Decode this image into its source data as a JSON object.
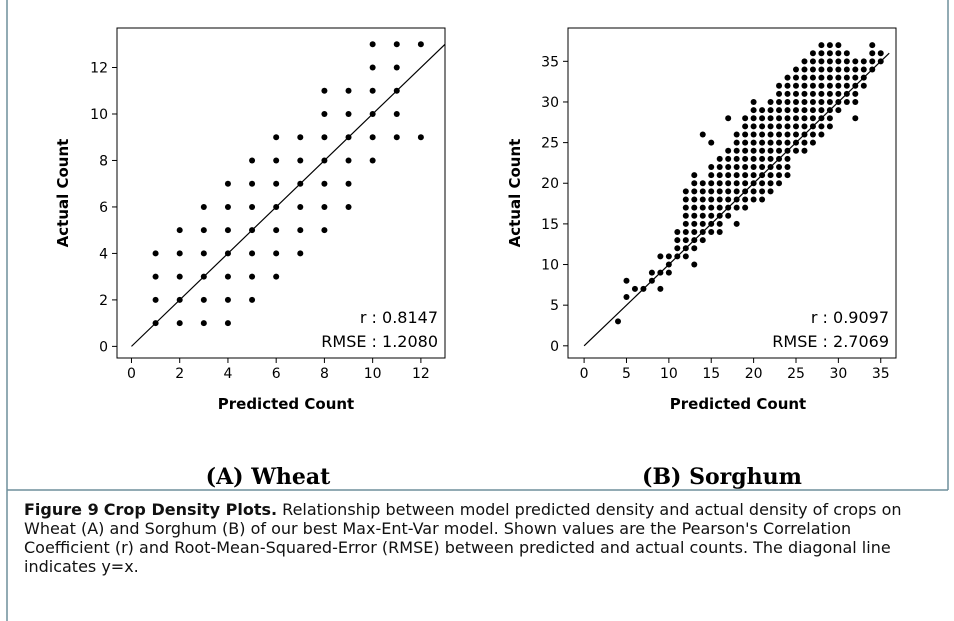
{
  "chart_data": [
    {
      "type": "scatter",
      "title": "(A) Wheat",
      "xlabel": "Predicted Count",
      "ylabel": "Actual Count",
      "annotations": [
        "r : 0.8147",
        "RMSE : 1.2080"
      ],
      "color": "#000000",
      "xlim": [
        -0.6,
        13
      ],
      "ylim": [
        -0.5,
        13.7
      ],
      "xticks": [
        0,
        2,
        4,
        6,
        8,
        10,
        12
      ],
      "yticks": [
        0,
        2,
        4,
        6,
        8,
        10,
        12
      ],
      "reference_line": {
        "x": [
          0,
          13
        ],
        "values": [
          0,
          13
        ]
      },
      "x": [
        1,
        1,
        1,
        1,
        2,
        2,
        2,
        2,
        2,
        3,
        3,
        3,
        3,
        3,
        3,
        4,
        4,
        4,
        4,
        4,
        4,
        4,
        5,
        5,
        5,
        5,
        5,
        5,
        5,
        6,
        6,
        6,
        6,
        6,
        6,
        6,
        7,
        7,
        7,
        7,
        7,
        7,
        8,
        8,
        8,
        8,
        8,
        8,
        8,
        9,
        9,
        9,
        9,
        9,
        9,
        10,
        10,
        10,
        10,
        10,
        10,
        11,
        11,
        11,
        11,
        11,
        12,
        12
      ],
      "values": [
        1,
        2,
        3,
        4,
        1,
        2,
        3,
        4,
        5,
        1,
        2,
        3,
        4,
        5,
        6,
        1,
        2,
        3,
        4,
        5,
        6,
        7,
        2,
        3,
        4,
        5,
        6,
        7,
        8,
        3,
        4,
        5,
        6,
        7,
        8,
        9,
        4,
        5,
        6,
        7,
        8,
        9,
        5,
        6,
        7,
        8,
        9,
        10,
        11,
        6,
        7,
        8,
        9,
        10,
        11,
        8,
        9,
        10,
        11,
        12,
        13,
        9,
        10,
        11,
        12,
        13,
        9,
        13
      ]
    },
    {
      "type": "scatter",
      "title": "(B) Sorghum",
      "xlabel": "Predicted Count",
      "ylabel": "Actual Count",
      "annotations": [
        "r : 0.9097",
        "RMSE : 2.7069"
      ],
      "color": "#000000",
      "xlim": [
        -1.9,
        36.8
      ],
      "ylim": [
        -1.5,
        39.1
      ],
      "xticks": [
        0,
        5,
        10,
        15,
        20,
        25,
        30,
        35
      ],
      "yticks": [
        0,
        5,
        10,
        15,
        20,
        25,
        30,
        35
      ],
      "reference_line": {
        "x": [
          0,
          36
        ],
        "values": [
          0,
          36
        ]
      },
      "x": [
        4,
        5,
        5,
        6,
        7,
        8,
        8,
        9,
        9,
        9,
        10,
        10,
        10,
        11,
        11,
        11,
        11,
        12,
        12,
        12,
        12,
        12,
        12,
        12,
        12,
        12,
        13,
        13,
        13,
        13,
        13,
        13,
        13,
        13,
        13,
        13,
        13,
        14,
        14,
        14,
        14,
        14,
        14,
        14,
        14,
        14,
        15,
        15,
        15,
        15,
        15,
        15,
        15,
        15,
        15,
        15,
        16,
        16,
        16,
        16,
        16,
        16,
        16,
        16,
        16,
        16,
        17,
        17,
        17,
        17,
        17,
        17,
        17,
        17,
        17,
        17,
        18,
        18,
        18,
        18,
        18,
        18,
        18,
        18,
        18,
        18,
        18,
        19,
        19,
        19,
        19,
        19,
        19,
        19,
        19,
        19,
        19,
        19,
        19,
        20,
        20,
        20,
        20,
        20,
        20,
        20,
        20,
        20,
        20,
        20,
        20,
        20,
        21,
        21,
        21,
        21,
        21,
        21,
        21,
        21,
        21,
        21,
        21,
        21,
        22,
        22,
        22,
        22,
        22,
        22,
        22,
        22,
        22,
        22,
        22,
        22,
        23,
        23,
        23,
        23,
        23,
        23,
        23,
        23,
        23,
        23,
        23,
        23,
        23,
        24,
        24,
        24,
        24,
        24,
        24,
        24,
        24,
        24,
        24,
        24,
        24,
        24,
        25,
        25,
        25,
        25,
        25,
        25,
        25,
        25,
        25,
        25,
        25,
        26,
        26,
        26,
        26,
        26,
        26,
        26,
        26,
        26,
        26,
        26,
        26,
        27,
        27,
        27,
        27,
        27,
        27,
        27,
        27,
        27,
        27,
        27,
        27,
        28,
        28,
        28,
        28,
        28,
        28,
        28,
        28,
        28,
        28,
        28,
        28,
        29,
        29,
        29,
        29,
        29,
        29,
        29,
        29,
        29,
        29,
        29,
        30,
        30,
        30,
        30,
        30,
        30,
        30,
        30,
        30,
        31,
        31,
        31,
        31,
        31,
        31,
        31,
        32,
        32,
        32,
        32,
        32,
        32,
        32,
        33,
        33,
        33,
        33,
        34,
        34,
        34,
        34,
        35,
        35
      ],
      "values": [
        3,
        6,
        8,
        7,
        7,
        8,
        9,
        7,
        9,
        11,
        9,
        10,
        11,
        11,
        12,
        13,
        14,
        11,
        12,
        13,
        14,
        15,
        16,
        17,
        18,
        19,
        10,
        12,
        13,
        14,
        15,
        16,
        17,
        18,
        19,
        20,
        21,
        13,
        14,
        15,
        16,
        17,
        18,
        19,
        20,
        26,
        14,
        15,
        16,
        17,
        18,
        19,
        20,
        21,
        22,
        25,
        14,
        15,
        16,
        17,
        18,
        19,
        20,
        21,
        22,
        23,
        16,
        17,
        18,
        19,
        20,
        21,
        22,
        23,
        24,
        28,
        15,
        17,
        18,
        19,
        20,
        21,
        22,
        23,
        24,
        25,
        26,
        17,
        18,
        19,
        20,
        21,
        22,
        23,
        24,
        25,
        26,
        27,
        28,
        18,
        19,
        20,
        21,
        22,
        23,
        24,
        25,
        26,
        27,
        28,
        29,
        30,
        18,
        19,
        20,
        21,
        22,
        23,
        24,
        25,
        26,
        27,
        28,
        29,
        19,
        20,
        21,
        22,
        23,
        24,
        25,
        26,
        27,
        28,
        29,
        30,
        20,
        21,
        22,
        23,
        24,
        25,
        26,
        27,
        28,
        29,
        30,
        31,
        32,
        21,
        22,
        23,
        24,
        25,
        26,
        27,
        28,
        29,
        30,
        31,
        32,
        33,
        24,
        25,
        26,
        27,
        28,
        29,
        30,
        31,
        32,
        33,
        34,
        24,
        25,
        26,
        27,
        28,
        29,
        30,
        31,
        32,
        33,
        34,
        35,
        25,
        26,
        27,
        28,
        29,
        30,
        31,
        32,
        33,
        34,
        35,
        36,
        26,
        27,
        28,
        29,
        30,
        31,
        32,
        33,
        34,
        35,
        36,
        37,
        27,
        28,
        29,
        30,
        31,
        32,
        33,
        34,
        35,
        36,
        37,
        29,
        30,
        31,
        32,
        33,
        34,
        35,
        36,
        37,
        30,
        31,
        32,
        33,
        34,
        35,
        36,
        28,
        30,
        31,
        32,
        33,
        34,
        35,
        32,
        33,
        34,
        35,
        34,
        35,
        36,
        37,
        35,
        36
      ]
    }
  ],
  "caption": {
    "label": "Figure 9",
    "title": "Crop Density Plots.",
    "text": "Relationship between model predicted density and actual density of crops on Wheat (A) and Sorghum (B) of our best Max-Ent-Var model. Shown values are the Pearson's Correlation Coefficient (r) and Root-Mean-Squared-Error (RMSE) between predicted and actual counts. The diagonal line indicates y=x."
  }
}
